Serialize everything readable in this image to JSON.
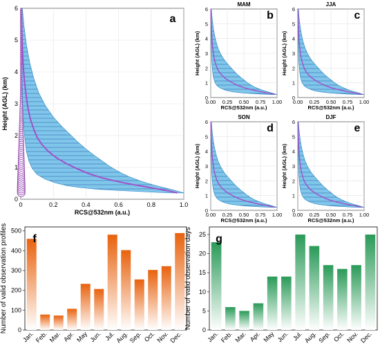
{
  "colors": {
    "band": "#7fc6ea",
    "band_edge": "#2a84c2",
    "hatch": "#3a6fb5",
    "mean_line": "#a24fc9",
    "marker": "#8e3aa9",
    "bar_orange": "#e8620e",
    "bar_green": "#2a9a58"
  },
  "chart_data": [
    {
      "id": "a",
      "type": "line",
      "panel_label": "a",
      "title": "",
      "xlabel": "RCS@532nm (a.u.)",
      "ylabel": "Height (AGL) (km)",
      "xlim": [
        0,
        1.0
      ],
      "ylim": [
        0,
        6
      ],
      "xticks": [
        "0",
        "0.2",
        "0.4",
        "0.6",
        "0.8",
        "1.0"
      ],
      "yticks": [
        "0",
        "1",
        "2",
        "3",
        "4",
        "5",
        "6"
      ],
      "grid": true,
      "series": [
        {
          "role": "mean",
          "x": [
            0.96,
            0.9,
            0.8,
            0.7,
            0.6,
            0.5,
            0.42,
            0.35,
            0.28,
            0.22,
            0.17,
            0.13,
            0.1,
            0.08,
            0.06,
            0.045,
            0.035,
            0.025,
            0.018,
            0.012,
            0.008,
            0.005,
            0.003
          ],
          "y": [
            0.2,
            0.27,
            0.36,
            0.45,
            0.55,
            0.67,
            0.8,
            0.95,
            1.12,
            1.3,
            1.5,
            1.72,
            1.95,
            2.2,
            2.5,
            2.85,
            3.2,
            3.6,
            4.0,
            4.5,
            5.0,
            5.5,
            6.0
          ]
        },
        {
          "role": "upper",
          "x": [
            1.0,
            0.93,
            0.85,
            0.78,
            0.72,
            0.66,
            0.6,
            0.55,
            0.5,
            0.45,
            0.4,
            0.35,
            0.3,
            0.25,
            0.2,
            0.15,
            0.11,
            0.08,
            0.055,
            0.035,
            0.02,
            0.01
          ],
          "y": [
            0.2,
            0.3,
            0.4,
            0.5,
            0.6,
            0.72,
            0.87,
            1.02,
            1.2,
            1.38,
            1.58,
            1.8,
            2.05,
            2.3,
            2.58,
            2.95,
            3.35,
            3.8,
            4.3,
            4.85,
            5.45,
            6.0
          ]
        },
        {
          "role": "lower",
          "x": [
            0.92,
            0.82,
            0.7,
            0.58,
            0.46,
            0.36,
            0.28,
            0.21,
            0.15,
            0.1,
            0.07,
            0.05,
            0.035,
            0.025,
            0.017,
            0.011,
            0.007,
            0.004,
            0.002
          ],
          "y": [
            0.2,
            0.22,
            0.25,
            0.28,
            0.32,
            0.37,
            0.43,
            0.52,
            0.63,
            0.78,
            0.97,
            1.2,
            1.5,
            1.9,
            2.4,
            3.1,
            3.9,
            4.9,
            6.0
          ]
        }
      ]
    },
    {
      "id": "b",
      "type": "line",
      "panel_label": "b",
      "title": "MAM",
      "xlabel": "RCS@532nm (a.u.)",
      "ylabel": "Height (AGL) (km)",
      "xlim": [
        0,
        1.0
      ],
      "ylim": [
        0,
        6
      ],
      "xticks": [
        "0.00",
        "0.25",
        "0.50",
        "0.75",
        "1.00"
      ],
      "yticks": [
        "0",
        "1",
        "2",
        "3",
        "4",
        "5",
        "6"
      ]
    },
    {
      "id": "c",
      "type": "line",
      "panel_label": "c",
      "title": "JJA",
      "xlabel": "RCS@532nm (a.u.)",
      "ylabel": "Height (AGL) (km)",
      "xlim": [
        0,
        1.0
      ],
      "ylim": [
        0,
        6
      ],
      "xticks": [
        "0.00",
        "0.25",
        "0.50",
        "0.75",
        "1.00"
      ],
      "yticks": [
        "0",
        "1",
        "2",
        "3",
        "4",
        "5",
        "6"
      ]
    },
    {
      "id": "d",
      "type": "line",
      "panel_label": "d",
      "title": "SON",
      "xlabel": "RCS@532nm (a.u.)",
      "ylabel": "Height (AGL) (km)",
      "xlim": [
        0,
        1.0
      ],
      "ylim": [
        0,
        6
      ],
      "xticks": [
        "0.00",
        "0.25",
        "0.50",
        "0.75",
        "1.00"
      ],
      "yticks": [
        "0",
        "1",
        "2",
        "3",
        "4",
        "5",
        "6"
      ]
    },
    {
      "id": "e",
      "type": "line",
      "panel_label": "e",
      "title": "DJF",
      "xlabel": "RCS@532nm (a.u.)",
      "ylabel": "Height (AGL) (km)",
      "xlim": [
        0,
        1.0
      ],
      "ylim": [
        0,
        6
      ],
      "xticks": [
        "0.00",
        "0.25",
        "0.50",
        "0.75",
        "1.00"
      ],
      "yticks": [
        "0",
        "1",
        "2",
        "3",
        "4",
        "5",
        "6"
      ]
    },
    {
      "id": "f",
      "type": "bar",
      "panel_label": "f",
      "ylabel": "Number of valid observation profiles",
      "ylim": [
        0,
        520
      ],
      "yticks": [
        0,
        100,
        200,
        300,
        400,
        500
      ],
      "categories": [
        "Jan.",
        "Feb.",
        "Mar.",
        "Apr.",
        "May",
        "Jun.",
        "Jul.",
        "Aug.",
        "Sep.",
        "Oct.",
        "Nov.",
        "Dec."
      ],
      "values": [
        460,
        78,
        73,
        107,
        233,
        207,
        481,
        403,
        255,
        303,
        322,
        489
      ]
    },
    {
      "id": "g",
      "type": "bar",
      "panel_label": "g",
      "ylabel": "Number of valid observation days",
      "ylim": [
        0,
        27
      ],
      "yticks": [
        0,
        5,
        10,
        15,
        20,
        25
      ],
      "categories": [
        "Jan.",
        "Feb.",
        "Mar.",
        "Apr.",
        "May",
        "Jun.",
        "Jul.",
        "Aug.",
        "Sep.",
        "Oct.",
        "Nov.",
        "Dec."
      ],
      "values": [
        23,
        6,
        5,
        7,
        14,
        14,
        25,
        22,
        17,
        16,
        17,
        25
      ]
    }
  ]
}
